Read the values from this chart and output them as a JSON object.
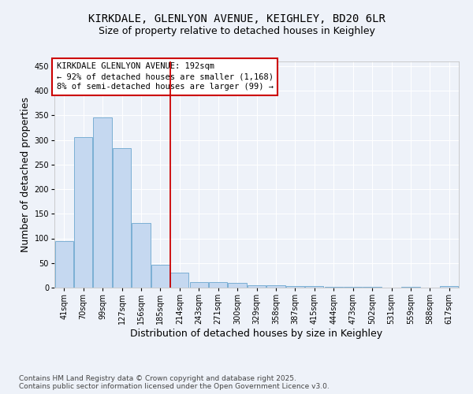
{
  "title_line1": "KIRKDALE, GLENLYON AVENUE, KEIGHLEY, BD20 6LR",
  "title_line2": "Size of property relative to detached houses in Keighley",
  "xlabel": "Distribution of detached houses by size in Keighley",
  "ylabel": "Number of detached properties",
  "categories": [
    "41sqm",
    "70sqm",
    "99sqm",
    "127sqm",
    "156sqm",
    "185sqm",
    "214sqm",
    "243sqm",
    "271sqm",
    "300sqm",
    "329sqm",
    "358sqm",
    "387sqm",
    "415sqm",
    "444sqm",
    "473sqm",
    "502sqm",
    "531sqm",
    "559sqm",
    "588sqm",
    "617sqm"
  ],
  "values": [
    95,
    305,
    345,
    283,
    132,
    46,
    30,
    11,
    12,
    9,
    5,
    5,
    4,
    3,
    2,
    1,
    1,
    0,
    1,
    0,
    3
  ],
  "bar_color": "#c5d8f0",
  "bar_edge_color": "#7bafd4",
  "vline_position": 5.5,
  "vline_color": "#cc0000",
  "annotation_text": "KIRKDALE GLENLYON AVENUE: 192sqm\n← 92% of detached houses are smaller (1,168)\n8% of semi-detached houses are larger (99) →",
  "annotation_box_edgecolor": "#cc0000",
  "ylim": [
    0,
    460
  ],
  "yticks": [
    0,
    50,
    100,
    150,
    200,
    250,
    300,
    350,
    400,
    450
  ],
  "footnote": "Contains HM Land Registry data © Crown copyright and database right 2025.\nContains public sector information licensed under the Open Government Licence v3.0.",
  "bg_color": "#eef2f9",
  "grid_color": "#ffffff",
  "title_fontsize": 10,
  "subtitle_fontsize": 9,
  "axis_label_fontsize": 9,
  "tick_fontsize": 7,
  "annotation_fontsize": 7.5,
  "footnote_fontsize": 6.5
}
